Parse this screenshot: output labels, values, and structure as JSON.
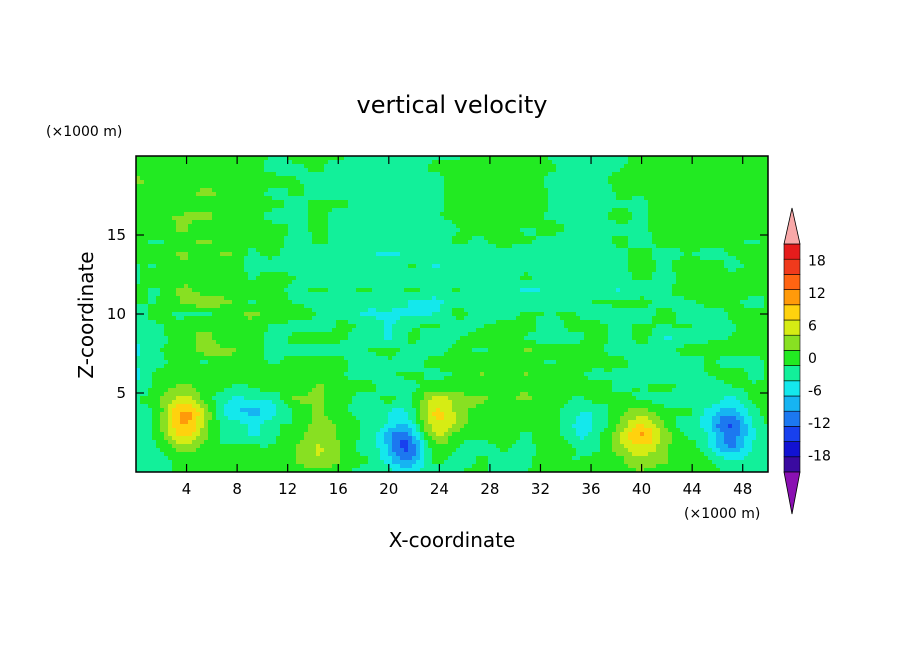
{
  "chart_data": {
    "type": "heatmap",
    "title": "vertical velocity",
    "xlabel": "X-coordinate",
    "ylabel": "Z-coordinate",
    "x_unit": "(×1000 m)",
    "y_unit": "(×1000 m)",
    "xlim": [
      0,
      50
    ],
    "ylim": [
      0,
      20
    ],
    "x_ticks": [
      4,
      8,
      12,
      16,
      20,
      24,
      28,
      32,
      36,
      40,
      44,
      48
    ],
    "y_ticks": [
      5,
      10,
      15
    ],
    "grid": false,
    "colorbar": {
      "levels": [
        -21,
        -18,
        -15,
        -12,
        -9,
        -6,
        -3,
        0,
        3,
        6,
        9,
        12,
        15,
        18,
        21
      ],
      "tick_labels": [
        "-18",
        "-12",
        "-6",
        "0",
        "6",
        "12",
        "18"
      ],
      "tick_values": [
        -18,
        -12,
        -6,
        0,
        6,
        12,
        18
      ],
      "colors": [
        "#3a0aa0",
        "#1212d2",
        "#1840ee",
        "#1c78f0",
        "#16b4f2",
        "#14e8ec",
        "#12f09a",
        "#22ea22",
        "#88e022",
        "#d6ec14",
        "#ffd20e",
        "#ff9a0a",
        "#ff6412",
        "#f03a1c",
        "#e61c1c"
      ],
      "under_color": "#8a10b2",
      "over_color": "#f8a8a8",
      "extend": "both",
      "placement": "right"
    },
    "features": [
      {
        "x": 3.8,
        "z": 3.3,
        "peak": 13
      },
      {
        "x": 23.8,
        "z": 3.4,
        "peak": 10
      },
      {
        "x": 40.0,
        "z": 2.5,
        "peak": 10
      },
      {
        "x": 14.5,
        "z": 1.5,
        "peak": 5
      },
      {
        "x": 21.2,
        "z": 1.8,
        "peak": -13
      },
      {
        "x": 47.0,
        "z": 2.6,
        "peak": -12
      },
      {
        "x": 35.5,
        "z": 2.5,
        "peak": -6
      },
      {
        "x": 10.0,
        "z": 3.5,
        "peak": -5
      },
      {
        "x": 8.0,
        "z": 4.5,
        "peak": -5
      }
    ]
  }
}
